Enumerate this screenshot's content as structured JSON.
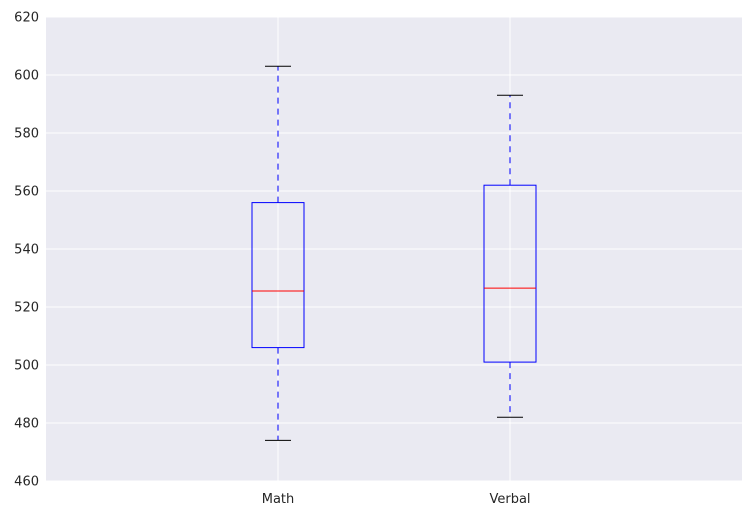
{
  "chart_data": {
    "type": "box",
    "categories": [
      "Math",
      "Verbal"
    ],
    "boxes": [
      {
        "name": "Math",
        "whisker_low": 474,
        "q1": 506,
        "median": 525.5,
        "q3": 556,
        "whisker_high": 603
      },
      {
        "name": "Verbal",
        "whisker_low": 482,
        "q1": 501,
        "median": 526.5,
        "q3": 562,
        "whisker_high": 593
      }
    ],
    "ylim": [
      460,
      620
    ],
    "yticks": [
      460,
      480,
      500,
      520,
      540,
      560,
      580,
      600,
      620
    ],
    "grid": true,
    "title": "",
    "xlabel": "",
    "ylabel": "",
    "colors": {
      "background": "#eaeaf2",
      "grid": "#ffffff",
      "box": "#0000ff",
      "median": "#ff0000",
      "cap": "#000000"
    }
  }
}
